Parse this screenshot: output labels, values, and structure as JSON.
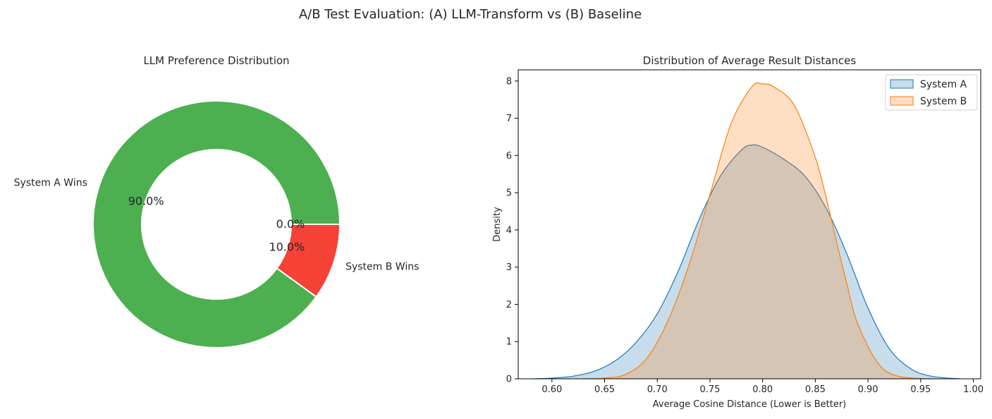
{
  "suptitle": "A/B Test Evaluation: (A) LLM-Transform vs (B) Baseline",
  "chart_data": [
    {
      "type": "pie",
      "variant": "donut",
      "title": "LLM Preference Distribution",
      "slices": [
        {
          "label": "System A Wins",
          "value": 90.0,
          "pct_label": "90.0%",
          "color": "#4caf50"
        },
        {
          "label": "System B Wins",
          "value": 10.0,
          "pct_label": "10.0%",
          "color": "#f44336"
        },
        {
          "label": "",
          "value": 0.0,
          "pct_label": "0.0%",
          "color": "#9e9e9e"
        }
      ]
    },
    {
      "type": "area",
      "title": "Distribution of Average Result Distances",
      "xlabel": "Average Cosine Distance (Lower is Better)",
      "ylabel": "Density",
      "xlim": [
        0.568,
        1.007
      ],
      "ylim": [
        0,
        8.3
      ],
      "xticks": [
        0.6,
        0.65,
        0.7,
        0.75,
        0.8,
        0.85,
        0.9,
        0.95,
        1.0
      ],
      "xtick_labels": [
        "0.60",
        "0.65",
        "0.70",
        "0.75",
        "0.80",
        "0.85",
        "0.90",
        "0.95",
        "1.00"
      ],
      "yticks": [
        0,
        1,
        2,
        3,
        4,
        5,
        6,
        7,
        8
      ],
      "ytick_labels": [
        "0",
        "1",
        "2",
        "3",
        "4",
        "5",
        "6",
        "7",
        "8"
      ],
      "legend": "top-right",
      "grid": false,
      "series": [
        {
          "name": "System A",
          "color": "#1f77b4",
          "x": [
            0.583,
            0.6,
            0.62,
            0.64,
            0.66,
            0.68,
            0.7,
            0.72,
            0.74,
            0.76,
            0.78,
            0.79,
            0.8,
            0.82,
            0.84,
            0.86,
            0.88,
            0.9,
            0.92,
            0.94,
            0.96,
            0.987
          ],
          "y": [
            0.0,
            0.02,
            0.07,
            0.2,
            0.48,
            0.98,
            1.75,
            2.9,
            4.3,
            5.45,
            6.15,
            6.28,
            6.22,
            5.9,
            5.45,
            4.6,
            3.35,
            1.9,
            0.82,
            0.28,
            0.07,
            0.0
          ]
        },
        {
          "name": "System B",
          "color": "#ff7f0e",
          "x": [
            0.63,
            0.65,
            0.67,
            0.69,
            0.71,
            0.73,
            0.75,
            0.77,
            0.79,
            0.8,
            0.81,
            0.83,
            0.85,
            0.86,
            0.87,
            0.88,
            0.89,
            0.91,
            0.93,
            0.96
          ],
          "y": [
            0.0,
            0.02,
            0.12,
            0.55,
            1.55,
            3.05,
            4.95,
            6.85,
            7.85,
            7.92,
            7.85,
            7.35,
            5.95,
            4.9,
            3.7,
            2.55,
            1.5,
            0.4,
            0.06,
            0.0
          ]
        }
      ]
    }
  ]
}
